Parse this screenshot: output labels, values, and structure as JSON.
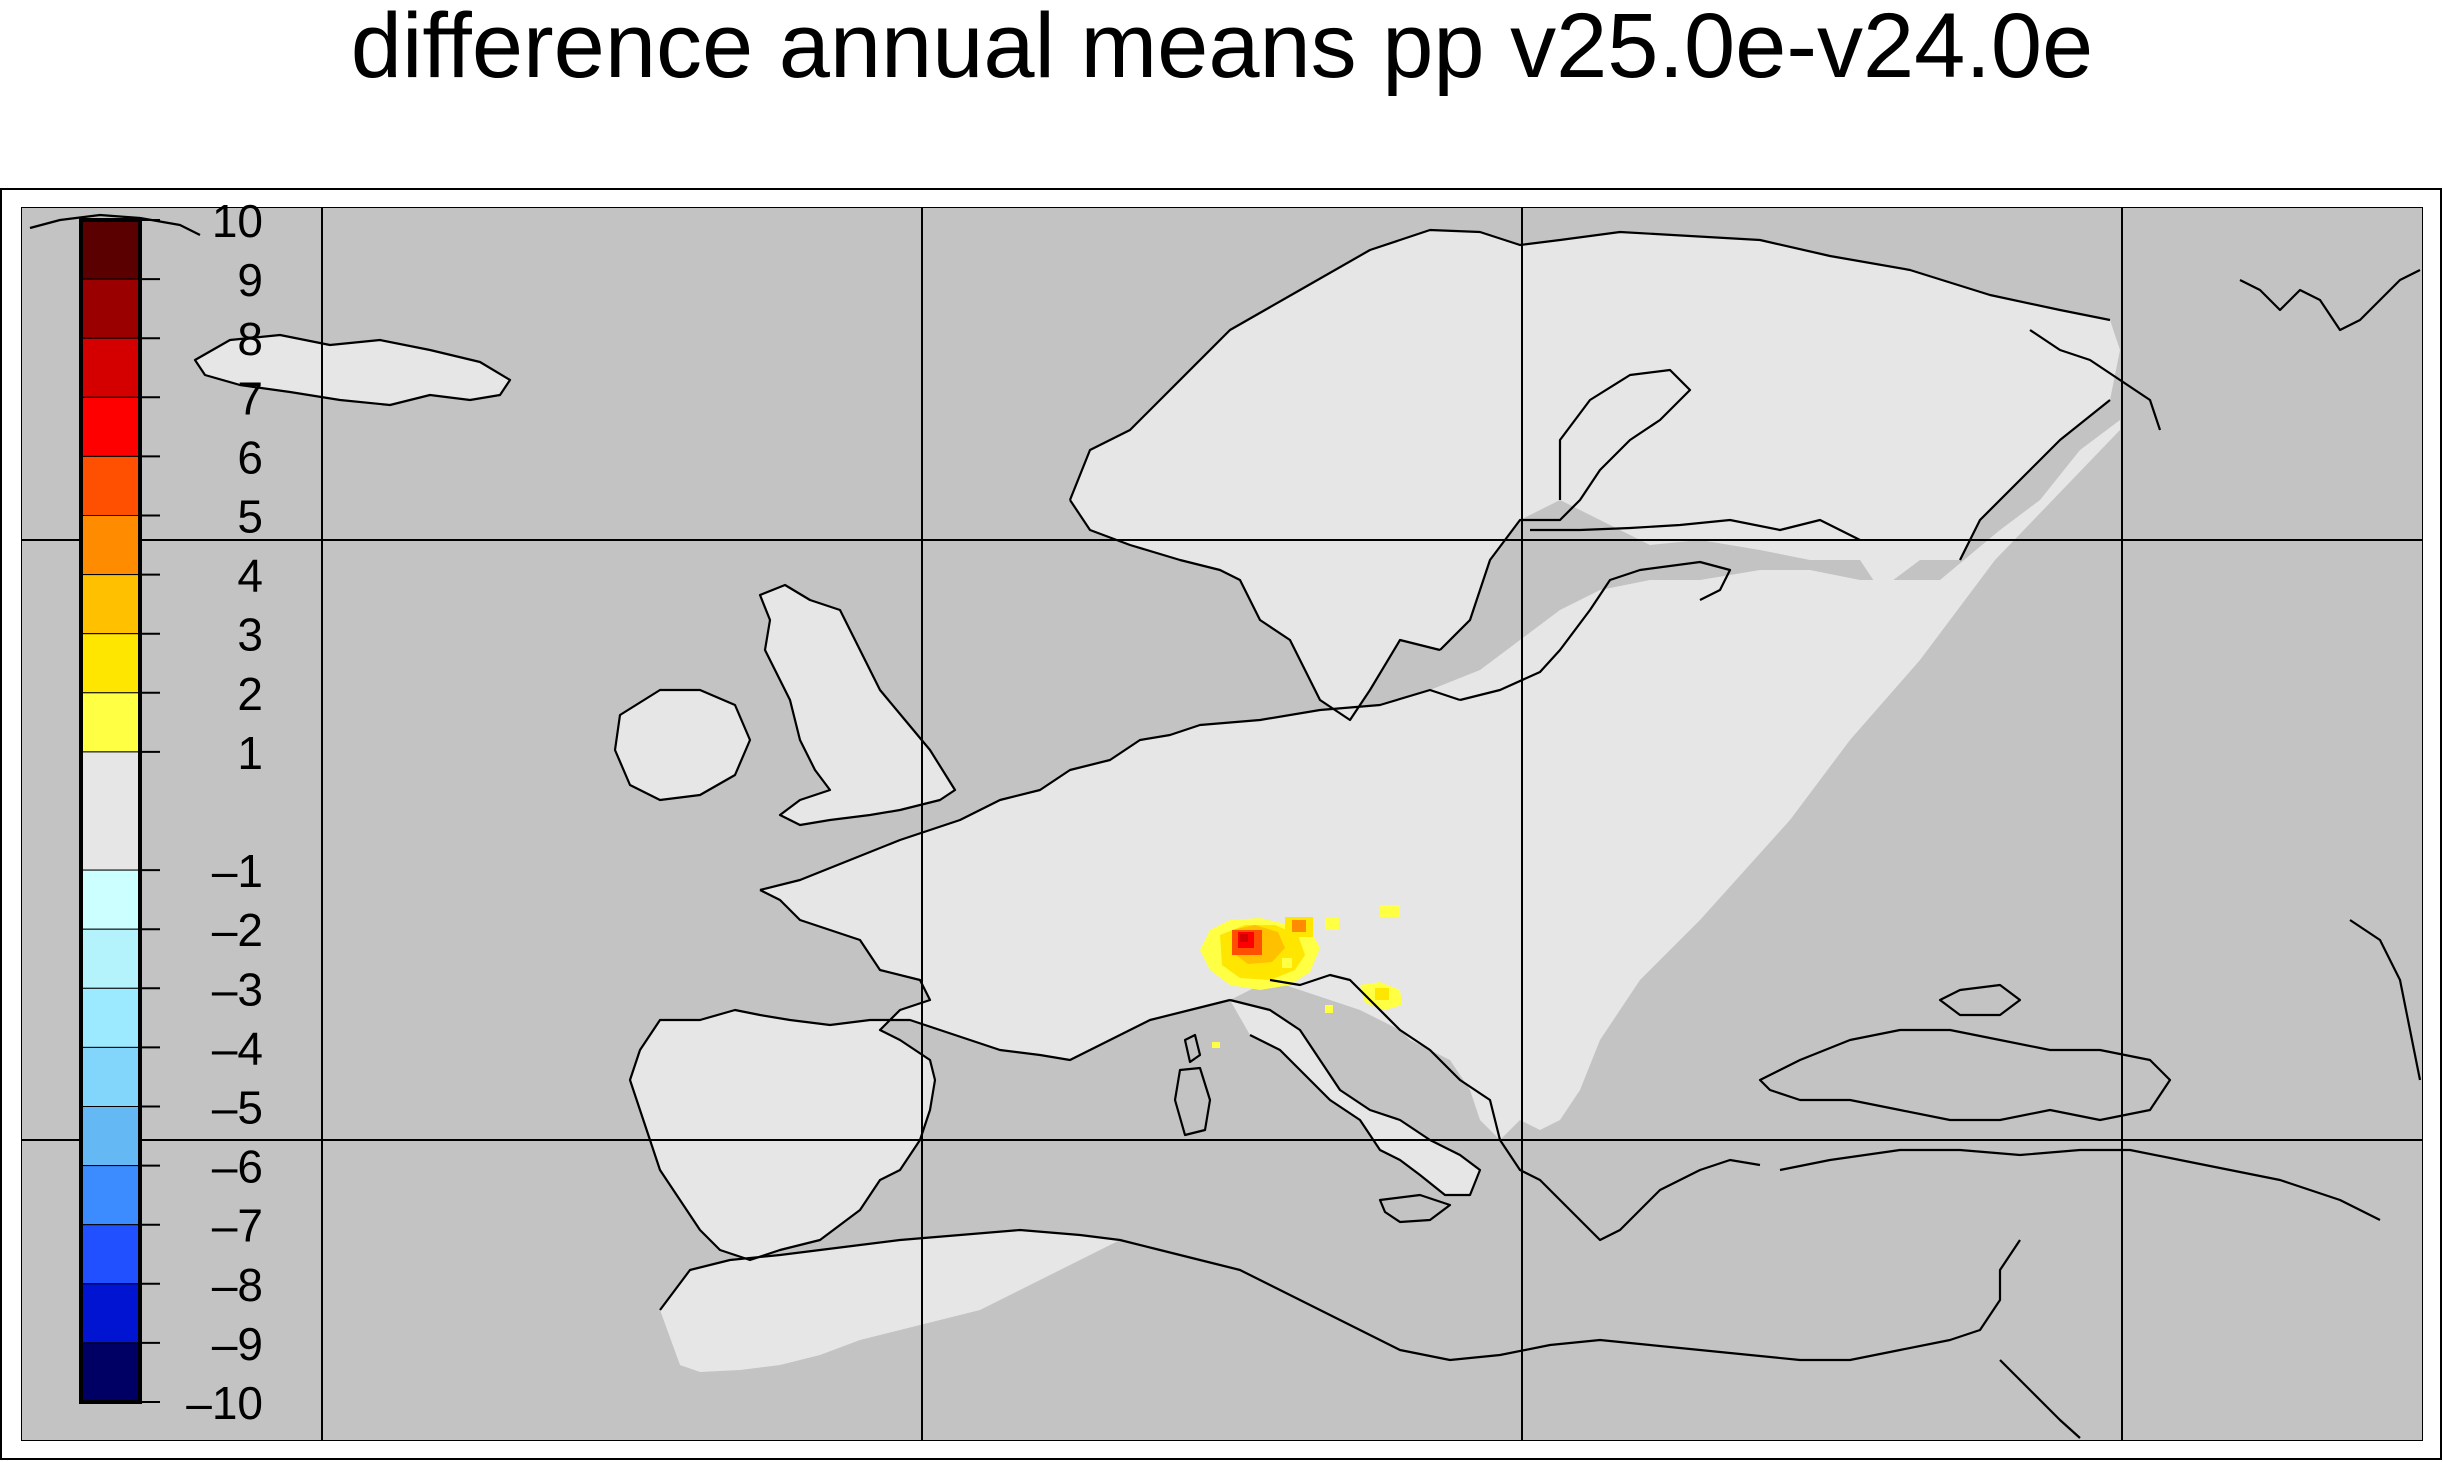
{
  "title": "difference annual means pp v25.0e-v24.0e",
  "colorbar": {
    "levels": [
      {
        "lo": 9,
        "hi": 10,
        "color": "#5a0000"
      },
      {
        "lo": 8,
        "hi": 9,
        "color": "#9b0000"
      },
      {
        "lo": 7,
        "hi": 8,
        "color": "#d40000"
      },
      {
        "lo": 6,
        "hi": 7,
        "color": "#ff0000"
      },
      {
        "lo": 5,
        "hi": 6,
        "color": "#ff4f00"
      },
      {
        "lo": 4,
        "hi": 5,
        "color": "#ff8c00"
      },
      {
        "lo": 3,
        "hi": 4,
        "color": "#ffc000"
      },
      {
        "lo": 2,
        "hi": 3,
        "color": "#ffe600"
      },
      {
        "lo": 1,
        "hi": 2,
        "color": "#ffff44"
      },
      {
        "lo": -1,
        "hi": 1,
        "color": "#e6e6e6"
      },
      {
        "lo": -2,
        "hi": -1,
        "color": "#ccffff"
      },
      {
        "lo": -3,
        "hi": -2,
        "color": "#b4f3fb"
      },
      {
        "lo": -4,
        "hi": -3,
        "color": "#9beaff"
      },
      {
        "lo": -5,
        "hi": -4,
        "color": "#82d6fb"
      },
      {
        "lo": -6,
        "hi": -5,
        "color": "#64b9f5"
      },
      {
        "lo": -7,
        "hi": -6,
        "color": "#3c8cff"
      },
      {
        "lo": -8,
        "hi": -7,
        "color": "#2050ff"
      },
      {
        "lo": -9,
        "hi": -8,
        "color": "#0014d2"
      },
      {
        "lo": -10,
        "hi": -9,
        "color": "#000064"
      }
    ],
    "tick_labels": [
      "10",
      "9",
      "8",
      "7",
      "6",
      "5",
      "4",
      "3",
      "2",
      "1",
      "–1",
      "–2",
      "–3",
      "–4",
      "–5",
      "–6",
      "–7",
      "–8",
      "–9",
      "–10"
    ]
  },
  "colors": {
    "ocean": "#c3c3c3",
    "land_no_change": "#e6e6e6",
    "coastline": "#000000",
    "gridline": "#000000"
  }
}
